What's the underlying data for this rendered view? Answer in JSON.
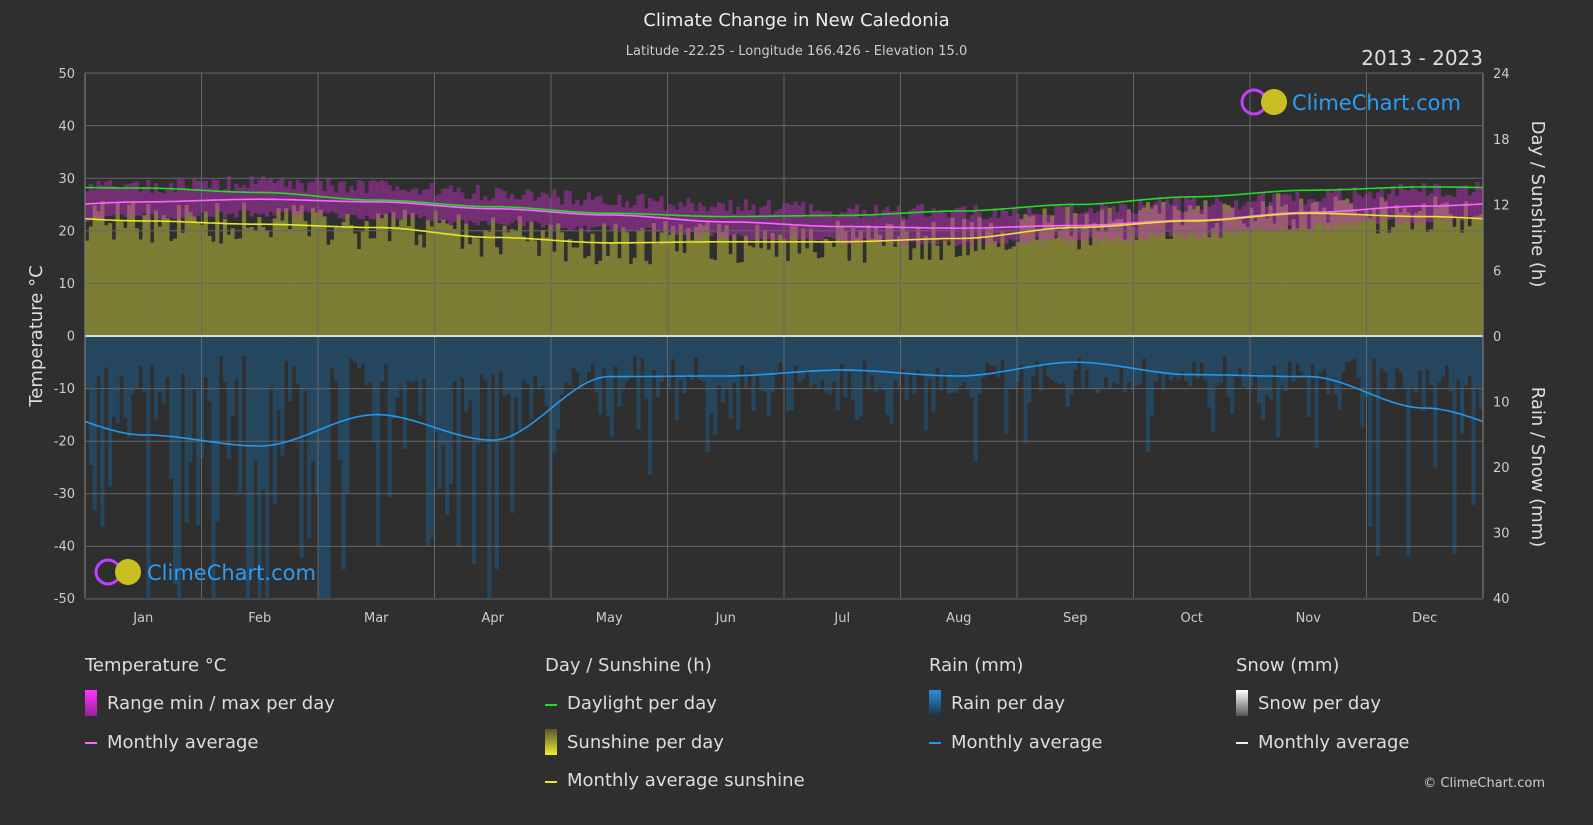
{
  "title": "Climate Change in New Caledonia",
  "subtitle": "Latitude -22.25 - Longitude 166.426 - Elevation 15.0",
  "years": "2013 - 2023",
  "watermark": "ClimeChart.com",
  "copyright": "© ClimeChart.com",
  "chart_data": {
    "type": "line",
    "categories": [
      "Jan",
      "Feb",
      "Mar",
      "Apr",
      "May",
      "Jun",
      "Jul",
      "Aug",
      "Sep",
      "Oct",
      "Nov",
      "Dec"
    ],
    "left_axis": {
      "label": "Temperature °C",
      "ylim": [
        -50,
        50
      ],
      "ticks": [
        "50",
        "40",
        "30",
        "20",
        "10",
        "0",
        "-10",
        "-20",
        "-30",
        "-40",
        "-50"
      ]
    },
    "right_axis_top": {
      "label": "Day / Sunshine (h)",
      "ylim": [
        0,
        24
      ],
      "ticks": [
        "24",
        "18",
        "12",
        "6",
        "0"
      ]
    },
    "right_axis_bottom": {
      "label": "Rain / Snow (mm)",
      "ylim": [
        0,
        40
      ],
      "ticks": [
        "0",
        "10",
        "20",
        "30",
        "40"
      ]
    },
    "grid": true,
    "series": [
      {
        "name": "Monthly average",
        "group": "temperature",
        "color": "#ff66ff",
        "values": [
          25.5,
          26,
          25.5,
          24.2,
          23,
          21.7,
          20.8,
          20.5,
          21,
          22,
          23.5,
          24.7
        ]
      },
      {
        "name": "Daylight per day",
        "group": "day",
        "color": "#22dd22",
        "values": [
          13.5,
          13.1,
          12.4,
          11.8,
          11.2,
          10.9,
          11.0,
          11.4,
          12.0,
          12.7,
          13.3,
          13.6
        ]
      },
      {
        "name": "Monthly average sunshine",
        "group": "day",
        "color": "#e6e62a",
        "values": [
          10.5,
          10.2,
          9.9,
          9.0,
          8.5,
          8.6,
          8.6,
          8.9,
          9.9,
          10.5,
          11.2,
          10.9
        ]
      },
      {
        "name": "Monthly average",
        "group": "rain",
        "color": "#2299ee",
        "values": [
          15.1,
          16.8,
          12.0,
          15.9,
          6.2,
          6.1,
          5.2,
          6.1,
          4.0,
          5.9,
          6.2,
          11.0
        ]
      }
    ]
  },
  "legend": {
    "temp": {
      "title": "Temperature °C",
      "items": [
        "Range min / max per day",
        "Monthly average"
      ]
    },
    "day": {
      "title": "Day / Sunshine (h)",
      "items": [
        "Daylight per day",
        "Sunshine per day",
        "Monthly average sunshine"
      ]
    },
    "rain": {
      "title": "Rain (mm)",
      "items": [
        "Rain per day",
        "Monthly average"
      ]
    },
    "snow": {
      "title": "Snow (mm)",
      "items": [
        "Snow per day",
        "Monthly average"
      ]
    }
  }
}
